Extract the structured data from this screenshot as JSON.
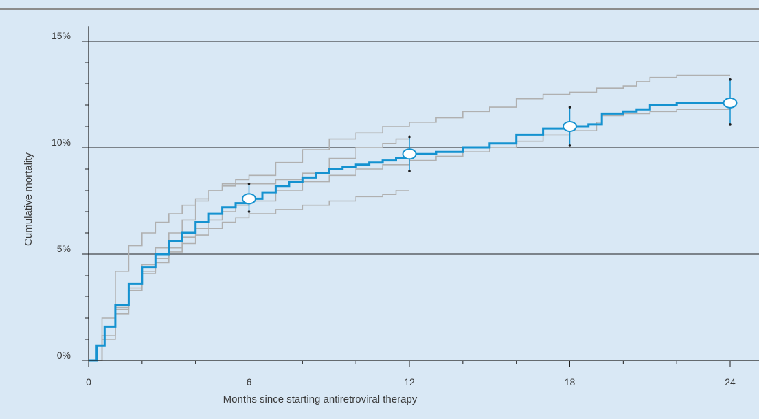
{
  "colors": {
    "background": "#d9e8f5",
    "main_series": "#1592d0",
    "cohort_series": "#b0b0b0",
    "gridline": "#1e1e1e",
    "axis": "#1e1e1e",
    "top_rule": "#8c8c8c",
    "marker_fill": "#ffffff"
  },
  "chart_data": {
    "type": "line",
    "title": "",
    "xlabel": "Months since starting antiretroviral therapy",
    "ylabel": "Cumulative mortality",
    "xlim": [
      0,
      24
    ],
    "ylim": [
      0,
      15.7
    ],
    "x_ticks": [
      0,
      6,
      12,
      18,
      24
    ],
    "x_tick_labels": [
      "0",
      "6",
      "12",
      "18",
      "24"
    ],
    "y_ticks": [
      0,
      5,
      10,
      15
    ],
    "y_tick_labels": [
      "0%",
      "5%",
      "10%",
      "15%"
    ],
    "grid": "horizontal at 5, 10, 15",
    "step": true,
    "series": [
      {
        "role": "main",
        "x": [
          0,
          0.3,
          0.6,
          1.0,
          1.5,
          2.0,
          2.5,
          3.0,
          3.5,
          4.0,
          4.5,
          5.0,
          5.5,
          6.0,
          6.5,
          7.0,
          7.5,
          8.0,
          8.5,
          9.0,
          9.5,
          10.0,
          10.5,
          11.0,
          11.5,
          12.0,
          13.0,
          14.0,
          15.0,
          16.0,
          17.0,
          18.0,
          18.7,
          19.2,
          20.0,
          20.5,
          21.0,
          22.0,
          23.0,
          24.0
        ],
        "y": [
          0,
          0.7,
          1.6,
          2.6,
          3.6,
          4.4,
          5.0,
          5.6,
          6.0,
          6.5,
          6.9,
          7.2,
          7.4,
          7.6,
          7.9,
          8.2,
          8.4,
          8.6,
          8.8,
          9.0,
          9.1,
          9.2,
          9.3,
          9.4,
          9.5,
          9.7,
          9.8,
          10.0,
          10.2,
          10.6,
          10.9,
          11.0,
          11.1,
          11.6,
          11.7,
          11.8,
          12.0,
          12.1,
          12.1,
          12.1
        ]
      },
      {
        "role": "cohort",
        "x": [
          0,
          0.5,
          1.0,
          1.5,
          2.0,
          2.5,
          3.0,
          3.5,
          4.0,
          4.5,
          5.0,
          5.5,
          6.0,
          7.0,
          8.0,
          9.0,
          10.0,
          11.0,
          12.0,
          13.0,
          14.0,
          15.0,
          16.0,
          17.0,
          18.0,
          19.0,
          20.0,
          20.5,
          21.0,
          22.0,
          24.0
        ],
        "y": [
          0,
          2.0,
          4.2,
          5.4,
          6.0,
          6.5,
          6.9,
          7.3,
          7.6,
          8.0,
          8.3,
          8.5,
          8.7,
          9.3,
          9.9,
          10.4,
          10.7,
          11.0,
          11.2,
          11.4,
          11.7,
          11.9,
          12.3,
          12.5,
          12.6,
          12.8,
          12.9,
          13.1,
          13.3,
          13.4,
          13.4
        ]
      },
      {
        "role": "cohort",
        "x": [
          0,
          0.5,
          1.0,
          1.5,
          2.0,
          2.5,
          3.0,
          3.5,
          4.0,
          4.5,
          5.0,
          5.5,
          6.0,
          7.0,
          8.0,
          9.0,
          10.0,
          11.0,
          11.5,
          12.0
        ],
        "y": [
          0,
          1.2,
          2.5,
          3.6,
          4.5,
          5.3,
          6.0,
          6.6,
          7.5,
          8.0,
          8.2,
          8.3,
          8.3,
          8.5,
          8.8,
          9.5,
          10.0,
          10.2,
          10.4,
          10.6
        ]
      },
      {
        "role": "cohort",
        "x": [
          0,
          0.5,
          1.0,
          1.5,
          2.0,
          2.5,
          3.0,
          3.5,
          4.0,
          4.5,
          5.0,
          5.5,
          6.0,
          7.0,
          8.0,
          9.0,
          10.0,
          11.0,
          11.5,
          12.0
        ],
        "y": [
          0,
          1.2,
          2.4,
          3.4,
          4.1,
          4.6,
          5.1,
          5.5,
          5.9,
          6.2,
          6.5,
          6.7,
          6.9,
          7.1,
          7.3,
          7.5,
          7.7,
          7.8,
          8.0,
          8.0
        ]
      },
      {
        "role": "cohort",
        "x": [
          0,
          0.5,
          1.0,
          1.5,
          2.0,
          2.5,
          3.0,
          3.5,
          4.0,
          4.5,
          5.0,
          5.5,
          6.0,
          7.0,
          8.0,
          9.0,
          10.0,
          11.0,
          12.0,
          13.0,
          14.0,
          15.0,
          16.0,
          17.0,
          18.0,
          19.0,
          19.2,
          20.0,
          21.0,
          22.0,
          24.0
        ],
        "y": [
          0,
          1.0,
          2.2,
          3.3,
          4.2,
          4.8,
          5.3,
          5.8,
          6.2,
          6.6,
          7.0,
          7.3,
          7.5,
          8.0,
          8.4,
          8.7,
          9.0,
          9.2,
          9.4,
          9.6,
          9.8,
          10.0,
          10.3,
          10.6,
          10.8,
          11.2,
          11.5,
          11.6,
          11.7,
          11.8,
          11.9
        ]
      }
    ],
    "markers": [
      {
        "x": 6,
        "y": 7.6,
        "lower": 7.0,
        "upper": 8.3
      },
      {
        "x": 12,
        "y": 9.7,
        "lower": 8.9,
        "upper": 10.5
      },
      {
        "x": 18,
        "y": 11.0,
        "lower": 10.1,
        "upper": 11.9
      },
      {
        "x": 24,
        "y": 12.1,
        "lower": 11.1,
        "upper": 13.2
      }
    ]
  }
}
